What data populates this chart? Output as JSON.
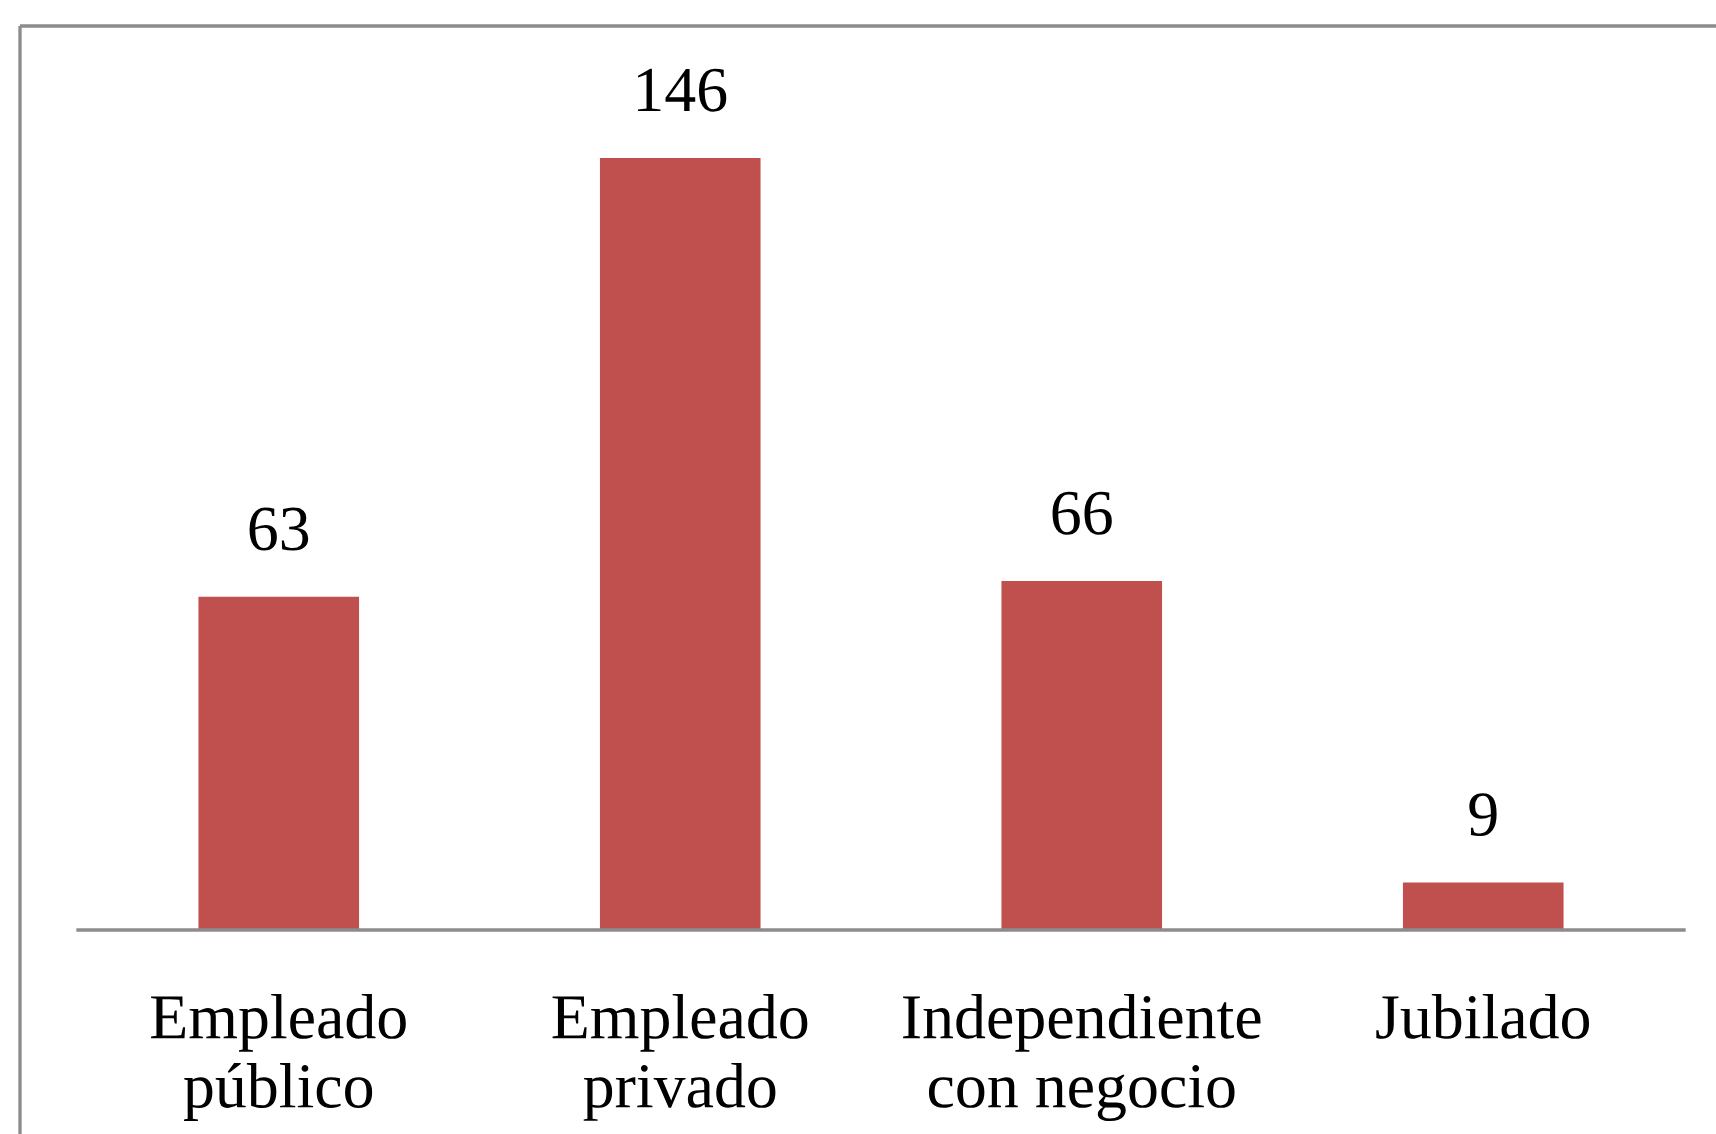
{
  "chart_data": {
    "type": "bar",
    "categories": [
      "Empleado\npúblico",
      "Empleado\nprivado",
      "Independiente\ncon negocio",
      "Jubilado"
    ],
    "values": [
      63,
      146,
      66,
      9
    ],
    "color": "#c0504d",
    "data_labels": true,
    "tick_labels": "x",
    "grid": false,
    "legend": false
  }
}
